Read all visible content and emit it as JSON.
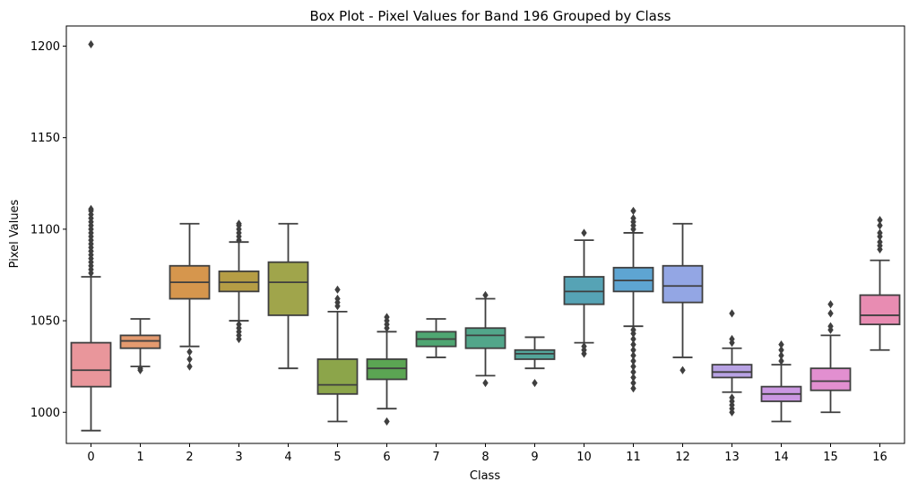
{
  "chart_data": {
    "type": "box",
    "title": "Box Plot - Pixel Values for Band 196 Grouped by Class",
    "xlabel": "Class",
    "ylabel": "Pixel Values",
    "ylim": [
      983,
      1211
    ],
    "yticks": [
      1000,
      1050,
      1100,
      1150,
      1200
    ],
    "grid": false,
    "categories": [
      "0",
      "1",
      "2",
      "3",
      "4",
      "5",
      "6",
      "7",
      "8",
      "9",
      "10",
      "11",
      "12",
      "13",
      "14",
      "15",
      "16"
    ],
    "boxes": [
      {
        "category": "0",
        "color": "#e9969b",
        "whisker_low": 990,
        "q1": 1014,
        "median": 1023,
        "q3": 1038,
        "whisker_high": 1074,
        "outliers": [
          1076,
          1078,
          1080,
          1082,
          1084,
          1086,
          1088,
          1090,
          1092,
          1094,
          1096,
          1098,
          1100,
          1102,
          1104,
          1106,
          1108,
          1110,
          1111,
          1201
        ]
      },
      {
        "category": "1",
        "color": "#e49a6f",
        "whisker_low": 1025,
        "q1": 1035,
        "median": 1039,
        "q3": 1042,
        "whisker_high": 1051,
        "outliers": [
          1023,
          1024
        ]
      },
      {
        "category": "2",
        "color": "#d6964d",
        "whisker_low": 1036,
        "q1": 1062,
        "median": 1071,
        "q3": 1080,
        "whisker_high": 1103,
        "outliers": [
          1025,
          1029,
          1033
        ]
      },
      {
        "category": "3",
        "color": "#b59d45",
        "whisker_low": 1050,
        "q1": 1066,
        "median": 1071,
        "q3": 1077,
        "whisker_high": 1093,
        "outliers": [
          1040,
          1042,
          1044,
          1046,
          1048,
          1094,
          1096,
          1098,
          1100,
          1102,
          1103
        ]
      },
      {
        "category": "4",
        "color": "#a0a54b",
        "whisker_low": 1024,
        "q1": 1053,
        "median": 1071,
        "q3": 1082,
        "whisker_high": 1103,
        "outliers": []
      },
      {
        "category": "5",
        "color": "#8ca54a",
        "whisker_low": 995,
        "q1": 1010,
        "median": 1015,
        "q3": 1029,
        "whisker_high": 1055,
        "outliers": [
          1058,
          1060,
          1062,
          1067
        ]
      },
      {
        "category": "6",
        "color": "#5ba553",
        "whisker_low": 1002,
        "q1": 1018,
        "median": 1024,
        "q3": 1029,
        "whisker_high": 1044,
        "outliers": [
          995,
          1046,
          1048,
          1050,
          1052
        ]
      },
      {
        "category": "7",
        "color": "#4fa672",
        "whisker_low": 1030,
        "q1": 1036,
        "median": 1040,
        "q3": 1044,
        "whisker_high": 1051,
        "outliers": []
      },
      {
        "category": "8",
        "color": "#52a68a",
        "whisker_low": 1020,
        "q1": 1035,
        "median": 1042,
        "q3": 1046,
        "whisker_high": 1062,
        "outliers": [
          1016,
          1064
        ]
      },
      {
        "category": "9",
        "color": "#53a59a",
        "whisker_low": 1024,
        "q1": 1029,
        "median": 1032,
        "q3": 1034,
        "whisker_high": 1041,
        "outliers": [
          1016
        ]
      },
      {
        "category": "10",
        "color": "#56a3b5",
        "whisker_low": 1038,
        "q1": 1059,
        "median": 1066,
        "q3": 1074,
        "whisker_high": 1094,
        "outliers": [
          1032,
          1034,
          1036,
          1098
        ]
      },
      {
        "category": "11",
        "color": "#5ea5d2",
        "whisker_low": 1047,
        "q1": 1066,
        "median": 1072,
        "q3": 1079,
        "whisker_high": 1098,
        "outliers": [
          1013,
          1016,
          1019,
          1022,
          1025,
          1028,
          1031,
          1034,
          1037,
          1040,
          1043,
          1045,
          1100,
          1102,
          1104,
          1106,
          1110
        ]
      },
      {
        "category": "12",
        "color": "#93a6e4",
        "whisker_low": 1030,
        "q1": 1060,
        "median": 1069,
        "q3": 1080,
        "whisker_high": 1103,
        "outliers": [
          1023
        ]
      },
      {
        "category": "13",
        "color": "#b8a2e4",
        "whisker_low": 1011,
        "q1": 1019,
        "median": 1022,
        "q3": 1026,
        "whisker_high": 1035,
        "outliers": [
          1000,
          1002,
          1004,
          1006,
          1008,
          1038,
          1040,
          1054
        ]
      },
      {
        "category": "14",
        "color": "#cb97e2",
        "whisker_low": 995,
        "q1": 1006,
        "median": 1010,
        "q3": 1014,
        "whisker_high": 1026,
        "outliers": [
          1028,
          1031,
          1034,
          1037
        ]
      },
      {
        "category": "15",
        "color": "#e28fd0",
        "whisker_low": 1000,
        "q1": 1012,
        "median": 1017,
        "q3": 1024,
        "whisker_high": 1042,
        "outliers": [
          1045,
          1047,
          1054,
          1059
        ]
      },
      {
        "category": "16",
        "color": "#e88cb2",
        "whisker_low": 1034,
        "q1": 1048,
        "median": 1053,
        "q3": 1064,
        "whisker_high": 1083,
        "outliers": [
          1089,
          1091,
          1093,
          1096,
          1098,
          1102,
          1105
        ]
      }
    ]
  }
}
